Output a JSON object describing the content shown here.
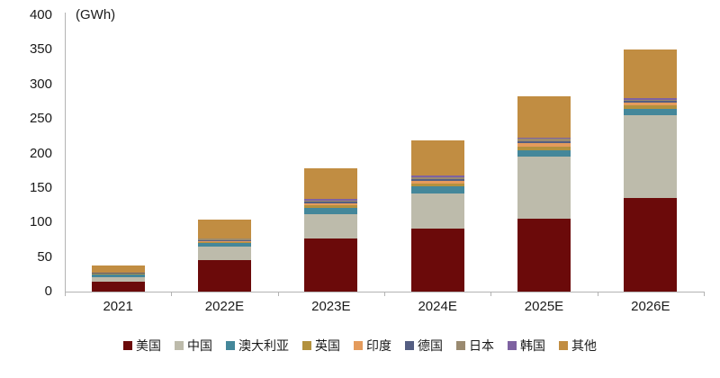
{
  "chart_data": {
    "type": "bar",
    "stacked": true,
    "unit_label": "(GWh)",
    "categories": [
      "2021",
      "2022E",
      "2023E",
      "2024E",
      "2025E",
      "2026E"
    ],
    "series": [
      {
        "name": "美国",
        "color": "#6B0A0A",
        "values": [
          14,
          45,
          77,
          91,
          105,
          135
        ]
      },
      {
        "name": "中国",
        "color": "#BDBBAB",
        "values": [
          7,
          20,
          35,
          51,
          90,
          120
        ]
      },
      {
        "name": "澳大利亚",
        "color": "#44879A",
        "values": [
          4,
          5,
          9,
          10,
          10,
          10
        ]
      },
      {
        "name": "英国",
        "color": "#B3913E",
        "values": [
          1,
          2,
          4,
          4,
          5,
          5
        ]
      },
      {
        "name": "印度",
        "color": "#E49B5C",
        "values": [
          0.5,
          1.5,
          3,
          4,
          5,
          4
        ]
      },
      {
        "name": "德国",
        "color": "#545E82",
        "values": [
          0.5,
          1.5,
          2,
          3,
          3,
          2
        ]
      },
      {
        "name": "日本",
        "color": "#9A8A70",
        "values": [
          0.5,
          1.5,
          2,
          3,
          3,
          2
        ]
      },
      {
        "name": "韩国",
        "color": "#7E62A1",
        "values": [
          0.5,
          1,
          2,
          2,
          2,
          2
        ]
      },
      {
        "name": "其他",
        "color": "#C18D42",
        "values": [
          10,
          27,
          44,
          51,
          60,
          70
        ]
      }
    ],
    "totals": [
      38,
      104.5,
      178,
      219,
      283,
      350
    ],
    "ylim": [
      0,
      400
    ],
    "yticks": [
      0,
      50,
      100,
      150,
      200,
      250,
      300,
      350,
      400
    ],
    "grid": false,
    "legend_position": "bottom"
  }
}
